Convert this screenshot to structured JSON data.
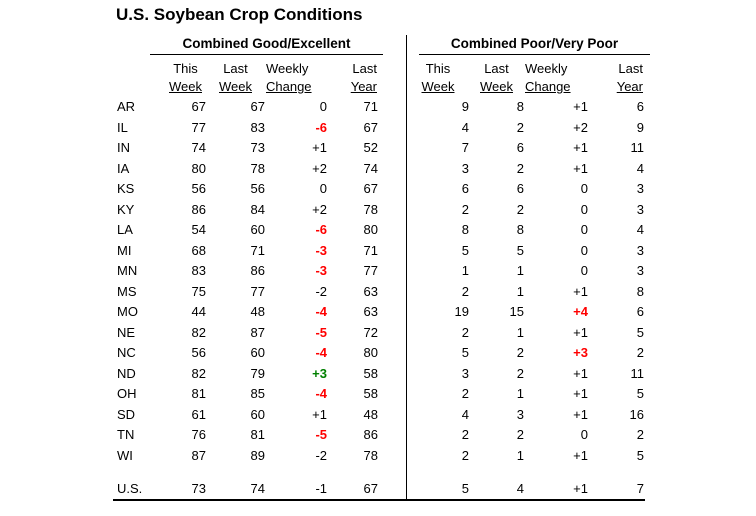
{
  "chart_data": {
    "type": "table",
    "title": "U.S. Soybean Crop Conditions",
    "section_titles": [
      "Combined Good/Excellent",
      "Combined Poor/Very Poor"
    ],
    "col_top": [
      "This",
      "Last",
      "Weekly",
      "Last"
    ],
    "col_bottom": [
      "Week",
      "Week",
      "Change",
      "Year"
    ],
    "colors": {
      "red": "#ff0000",
      "green": "#008000",
      "text": "#000000"
    },
    "highlight_rule": "weekly change of magnitude 3 or more is bold colored: red = worsening, green = improving",
    "rows": [
      {
        "state": "AR",
        "ge": [
          "67",
          "67",
          "0",
          "71"
        ],
        "ge_hl": "",
        "pp": [
          "9",
          "8",
          "+1",
          "6"
        ],
        "pp_hl": ""
      },
      {
        "state": "IL",
        "ge": [
          "77",
          "83",
          "-6",
          "67"
        ],
        "ge_hl": "red",
        "pp": [
          "4",
          "2",
          "+2",
          "9"
        ],
        "pp_hl": ""
      },
      {
        "state": "IN",
        "ge": [
          "74",
          "73",
          "+1",
          "52"
        ],
        "ge_hl": "",
        "pp": [
          "7",
          "6",
          "+1",
          "11"
        ],
        "pp_hl": ""
      },
      {
        "state": "IA",
        "ge": [
          "80",
          "78",
          "+2",
          "74"
        ],
        "ge_hl": "",
        "pp": [
          "3",
          "2",
          "+1",
          "4"
        ],
        "pp_hl": ""
      },
      {
        "state": "KS",
        "ge": [
          "56",
          "56",
          "0",
          "67"
        ],
        "ge_hl": "",
        "pp": [
          "6",
          "6",
          "0",
          "3"
        ],
        "pp_hl": ""
      },
      {
        "state": "KY",
        "ge": [
          "86",
          "84",
          "+2",
          "78"
        ],
        "ge_hl": "",
        "pp": [
          "2",
          "2",
          "0",
          "3"
        ],
        "pp_hl": ""
      },
      {
        "state": "LA",
        "ge": [
          "54",
          "60",
          "-6",
          "80"
        ],
        "ge_hl": "red",
        "pp": [
          "8",
          "8",
          "0",
          "4"
        ],
        "pp_hl": ""
      },
      {
        "state": "MI",
        "ge": [
          "68",
          "71",
          "-3",
          "71"
        ],
        "ge_hl": "red",
        "pp": [
          "5",
          "5",
          "0",
          "3"
        ],
        "pp_hl": ""
      },
      {
        "state": "MN",
        "ge": [
          "83",
          "86",
          "-3",
          "77"
        ],
        "ge_hl": "red",
        "pp": [
          "1",
          "1",
          "0",
          "3"
        ],
        "pp_hl": ""
      },
      {
        "state": "MS",
        "ge": [
          "75",
          "77",
          "-2",
          "63"
        ],
        "ge_hl": "",
        "pp": [
          "2",
          "1",
          "+1",
          "8"
        ],
        "pp_hl": ""
      },
      {
        "state": "MO",
        "ge": [
          "44",
          "48",
          "-4",
          "63"
        ],
        "ge_hl": "red",
        "pp": [
          "19",
          "15",
          "+4",
          "6"
        ],
        "pp_hl": "red"
      },
      {
        "state": "NE",
        "ge": [
          "82",
          "87",
          "-5",
          "72"
        ],
        "ge_hl": "red",
        "pp": [
          "2",
          "1",
          "+1",
          "5"
        ],
        "pp_hl": ""
      },
      {
        "state": "NC",
        "ge": [
          "56",
          "60",
          "-4",
          "80"
        ],
        "ge_hl": "red",
        "pp": [
          "5",
          "2",
          "+3",
          "2"
        ],
        "pp_hl": "red"
      },
      {
        "state": "ND",
        "ge": [
          "82",
          "79",
          "+3",
          "58"
        ],
        "ge_hl": "green",
        "pp": [
          "3",
          "2",
          "+1",
          "11"
        ],
        "pp_hl": ""
      },
      {
        "state": "OH",
        "ge": [
          "81",
          "85",
          "-4",
          "58"
        ],
        "ge_hl": "red",
        "pp": [
          "2",
          "1",
          "+1",
          "5"
        ],
        "pp_hl": ""
      },
      {
        "state": "SD",
        "ge": [
          "61",
          "60",
          "+1",
          "48"
        ],
        "ge_hl": "",
        "pp": [
          "4",
          "3",
          "+1",
          "16"
        ],
        "pp_hl": ""
      },
      {
        "state": "TN",
        "ge": [
          "76",
          "81",
          "-5",
          "86"
        ],
        "ge_hl": "red",
        "pp": [
          "2",
          "2",
          "0",
          "2"
        ],
        "pp_hl": ""
      },
      {
        "state": "WI",
        "ge": [
          "87",
          "89",
          "-2",
          "78"
        ],
        "ge_hl": "",
        "pp": [
          "2",
          "1",
          "+1",
          "5"
        ],
        "pp_hl": ""
      }
    ],
    "us_row": {
      "state": "U.S.",
      "ge": [
        "73",
        "74",
        "-1",
        "67"
      ],
      "ge_hl": "",
      "pp": [
        "5",
        "4",
        "+1",
        "7"
      ],
      "pp_hl": ""
    }
  }
}
